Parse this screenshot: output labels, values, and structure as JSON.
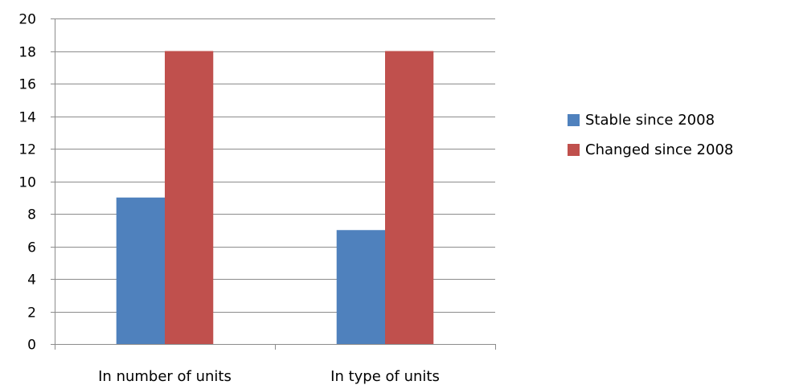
{
  "chart_data": {
    "type": "bar",
    "categories": [
      "In number of units",
      "In type of units"
    ],
    "series": [
      {
        "name": "Stable since 2008",
        "values": [
          9,
          7
        ],
        "color": "#4F81BD"
      },
      {
        "name": "Changed since 2008",
        "values": [
          18,
          18
        ],
        "color": "#C0504D"
      }
    ],
    "ylim": [
      0,
      20
    ],
    "yticks": [
      0,
      2,
      4,
      6,
      8,
      10,
      12,
      14,
      16,
      18,
      20
    ],
    "grid": true,
    "legend_position": "right",
    "title": "",
    "xlabel": "",
    "ylabel": ""
  }
}
